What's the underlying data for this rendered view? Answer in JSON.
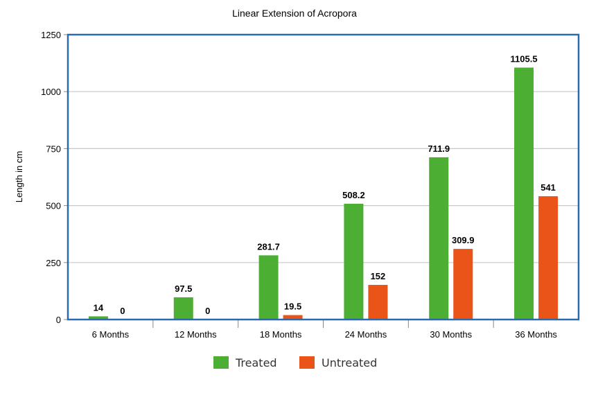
{
  "chart_data": {
    "type": "bar",
    "title": "Linear Extension of Acropora",
    "xlabel": "",
    "ylabel": "Length in cm",
    "ylim": [
      0,
      1250
    ],
    "yticks": [
      0,
      250,
      500,
      750,
      1000,
      1250
    ],
    "grid": true,
    "legend_position": "bottom",
    "categories": [
      "6 Months",
      "12 Months",
      "18 Months",
      "24 Months",
      "30 Months",
      "36 Months"
    ],
    "series": [
      {
        "name": "Treated",
        "color": "#4cae32",
        "values": [
          14,
          97.5,
          281.7,
          508.2,
          711.9,
          1105.5
        ],
        "labels": [
          "14",
          "97.5",
          "281.7",
          "508.2",
          "711.9",
          "1105.5"
        ]
      },
      {
        "name": "Untreated",
        "color": "#ea5419",
        "values": [
          0,
          0,
          19.5,
          152,
          309.9,
          541
        ],
        "labels": [
          "0",
          "0",
          "19.5",
          "152",
          "309.9",
          "541"
        ]
      }
    ],
    "colors": {
      "frame": "#2a6aad",
      "grid": "#c8c8c8"
    }
  }
}
